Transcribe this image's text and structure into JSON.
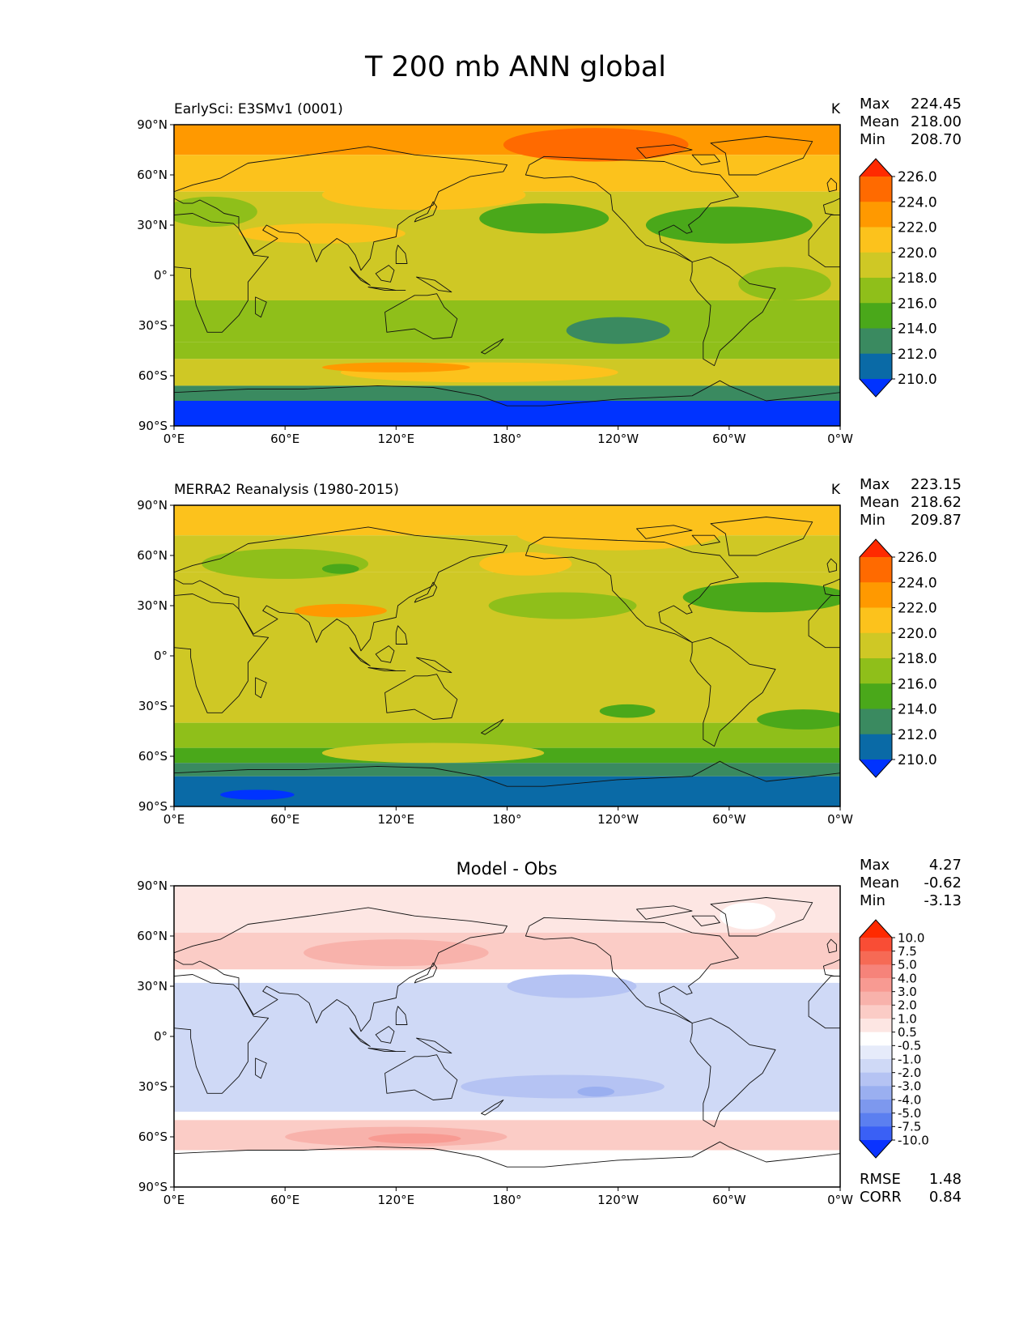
{
  "figure_title": "T 200 mb ANN global",
  "chart_data": [
    {
      "type": "heatmap",
      "title": "EarlySci: E3SMv1 (0001)",
      "units": "K",
      "stats": {
        "max_label": "Max",
        "max": "224.45",
        "mean_label": "Mean",
        "mean": "218.00",
        "min_label": "Min",
        "min": "208.70"
      },
      "x_ticks": [
        "0°E",
        "60°E",
        "120°E",
        "180°",
        "120°W",
        "60°W",
        "0°W"
      ],
      "y_ticks": [
        "90°N",
        "60°N",
        "30°N",
        "0°",
        "30°S",
        "60°S",
        "90°S"
      ],
      "xlim": [
        0,
        360
      ],
      "ylim": [
        -90,
        90
      ],
      "colorbar": {
        "levels": [
          "226.0",
          "224.0",
          "222.0",
          "220.0",
          "218.0",
          "216.0",
          "214.0",
          "212.0",
          "210.0"
        ],
        "colors": [
          "#ff2a00",
          "#ff6a00",
          "#ff9900",
          "#fcc21c",
          "#cfc825",
          "#8fbf1a",
          "#4aa81a",
          "#3a8a60",
          "#0a6aa6",
          "#0033ff"
        ]
      },
      "field_bands": [
        {
          "lat": [
            72,
            90
          ],
          "value": 222.5
        },
        {
          "lat": [
            50,
            72
          ],
          "value": 220.5
        },
        {
          "lat": [
            15,
            50
          ],
          "value": 218.5
        },
        {
          "lat": [
            -15,
            15
          ],
          "value": 218.5
        },
        {
          "lat": [
            -40,
            -15
          ],
          "value": 217
        },
        {
          "lat": [
            -50,
            -40
          ],
          "value": 216.5
        },
        {
          "lat": [
            -66,
            -50
          ],
          "value": 219
        },
        {
          "lat": [
            -75,
            -66
          ],
          "value": 213
        },
        {
          "lat": [
            -90,
            -75
          ],
          "value": 209
        }
      ],
      "field_blobs": [
        {
          "lon": 165,
          "lat": -58,
          "rlon": 75,
          "rlat": 6,
          "value": 221
        },
        {
          "lon": 120,
          "lat": -55,
          "rlon": 40,
          "rlat": 3,
          "value": 223
        },
        {
          "lon": 228,
          "lat": 78,
          "rlon": 50,
          "rlat": 10,
          "value": 224.5
        },
        {
          "lon": 200,
          "lat": 34,
          "rlon": 35,
          "rlat": 9,
          "value": 215
        },
        {
          "lon": 300,
          "lat": 30,
          "rlon": 45,
          "rlat": 11,
          "value": 215
        },
        {
          "lon": 240,
          "lat": -33,
          "rlon": 28,
          "rlat": 8,
          "value": 213
        },
        {
          "lon": 20,
          "lat": 38,
          "rlon": 25,
          "rlat": 9,
          "value": 216
        },
        {
          "lon": 80,
          "lat": 25,
          "rlon": 45,
          "rlat": 6,
          "value": 220.5
        },
        {
          "lon": 135,
          "lat": 48,
          "rlon": 55,
          "rlat": 9,
          "value": 221
        },
        {
          "lon": 330,
          "lat": -5,
          "rlon": 25,
          "rlat": 10,
          "value": 217
        }
      ]
    },
    {
      "type": "heatmap",
      "title": "MERRA2 Reanalysis (1980-2015)",
      "units": "K",
      "stats": {
        "max_label": "Max",
        "max": "223.15",
        "mean_label": "Mean",
        "mean": "218.62",
        "min_label": "Min",
        "min": "209.87"
      },
      "x_ticks": [
        "0°E",
        "60°E",
        "120°E",
        "180°",
        "120°W",
        "60°W",
        "0°W"
      ],
      "y_ticks": [
        "90°N",
        "60°N",
        "30°N",
        "0°",
        "30°S",
        "60°S",
        "90°S"
      ],
      "xlim": [
        0,
        360
      ],
      "ylim": [
        -90,
        90
      ],
      "colorbar": {
        "levels": [
          "226.0",
          "224.0",
          "222.0",
          "220.0",
          "218.0",
          "216.0",
          "214.0",
          "212.0",
          "210.0"
        ],
        "colors": [
          "#ff2a00",
          "#ff6a00",
          "#ff9900",
          "#fcc21c",
          "#cfc825",
          "#8fbf1a",
          "#4aa81a",
          "#3a8a60",
          "#0a6aa6",
          "#0033ff"
        ]
      },
      "field_bands": [
        {
          "lat": [
            72,
            90
          ],
          "value": 220.5
        },
        {
          "lat": [
            50,
            72
          ],
          "value": 218.5
        },
        {
          "lat": [
            15,
            50
          ],
          "value": 219
        },
        {
          "lat": [
            -15,
            15
          ],
          "value": 219
        },
        {
          "lat": [
            -40,
            -15
          ],
          "value": 219.5
        },
        {
          "lat": [
            -55,
            -40
          ],
          "value": 217
        },
        {
          "lat": [
            -64,
            -55
          ],
          "value": 215
        },
        {
          "lat": [
            -72,
            -64
          ],
          "value": 213
        },
        {
          "lat": [
            -90,
            -72
          ],
          "value": 211
        }
      ],
      "field_blobs": [
        {
          "lon": 240,
          "lat": 73,
          "rlon": 55,
          "rlat": 10,
          "value": 221
        },
        {
          "lon": 190,
          "lat": 55,
          "rlon": 25,
          "rlat": 7,
          "value": 221
        },
        {
          "lon": 210,
          "lat": 30,
          "rlon": 40,
          "rlat": 8,
          "value": 217
        },
        {
          "lon": 320,
          "lat": 35,
          "rlon": 45,
          "rlat": 9,
          "value": 215
        },
        {
          "lon": 90,
          "lat": 27,
          "rlon": 25,
          "rlat": 4,
          "value": 222.5
        },
        {
          "lon": 60,
          "lat": 55,
          "rlon": 45,
          "rlat": 9,
          "value": 217
        },
        {
          "lon": 90,
          "lat": 52,
          "rlon": 10,
          "rlat": 3,
          "value": 215
        },
        {
          "lon": 140,
          "lat": -58,
          "rlon": 60,
          "rlat": 6,
          "value": 218
        },
        {
          "lon": 245,
          "lat": -33,
          "rlon": 15,
          "rlat": 4,
          "value": 215
        },
        {
          "lon": 340,
          "lat": -38,
          "rlon": 25,
          "rlat": 6,
          "value": 215
        },
        {
          "lon": 45,
          "lat": -83,
          "rlon": 20,
          "rlat": 3,
          "value": 209.5
        }
      ]
    },
    {
      "type": "heatmap",
      "title": "Model - Obs",
      "units": "",
      "stats": {
        "max_label": "Max",
        "max": "4.27",
        "mean_label": "Mean",
        "mean": "-0.62",
        "min_label": "Min",
        "min": "-3.13"
      },
      "metrics": {
        "rmse_label": "RMSE",
        "rmse": "1.48",
        "corr_label": "CORR",
        "corr": "0.84"
      },
      "x_ticks": [
        "0°E",
        "60°E",
        "120°E",
        "180°",
        "120°W",
        "60°W",
        "0°W"
      ],
      "y_ticks": [
        "90°N",
        "60°N",
        "30°N",
        "0°",
        "30°S",
        "60°S",
        "90°S"
      ],
      "xlim": [
        0,
        360
      ],
      "ylim": [
        -90,
        90
      ],
      "colorbar": {
        "levels": [
          "10.0",
          "7.5",
          "5.0",
          "4.0",
          "3.0",
          "2.0",
          "1.0",
          "0.5",
          "-0.5",
          "-1.0",
          "-2.0",
          "-3.0",
          "-4.0",
          "-5.0",
          "-7.5",
          "-10.0"
        ],
        "colors": [
          "#ff2a00",
          "#f94d35",
          "#f66a55",
          "#f6837a",
          "#f89a92",
          "#f8b2ab",
          "#fbccc6",
          "#fde6e3",
          "#ffffff",
          "#e6ebfa",
          "#cfd9f6",
          "#b5c3f3",
          "#9aaff0",
          "#7d98ee",
          "#5b7ff0",
          "#3a60f5",
          "#0a33ff"
        ]
      },
      "field_bands": [
        {
          "lat": [
            62,
            90
          ],
          "value": 0.8
        },
        {
          "lat": [
            40,
            62
          ],
          "value": 1.4
        },
        {
          "lat": [
            32,
            40
          ],
          "value": 0.2
        },
        {
          "lat": [
            15,
            32
          ],
          "value": -1.2
        },
        {
          "lat": [
            -15,
            15
          ],
          "value": -1.1
        },
        {
          "lat": [
            -45,
            -15
          ],
          "value": -1.5
        },
        {
          "lat": [
            -50,
            -45
          ],
          "value": 0.1
        },
        {
          "lat": [
            -68,
            -50
          ],
          "value": 1.3
        },
        {
          "lat": [
            -90,
            -68
          ],
          "value": 0.1
        }
      ],
      "field_blobs": [
        {
          "lon": 120,
          "lat": 50,
          "rlon": 50,
          "rlat": 8,
          "value": 2.3
        },
        {
          "lon": 120,
          "lat": -60,
          "rlon": 60,
          "rlat": 6,
          "value": 2.3
        },
        {
          "lon": 130,
          "lat": -61,
          "rlon": 25,
          "rlat": 3,
          "value": 3.5
        },
        {
          "lon": 215,
          "lat": 30,
          "rlon": 35,
          "rlat": 7,
          "value": -2.4
        },
        {
          "lon": 210,
          "lat": -30,
          "rlon": 55,
          "rlat": 7,
          "value": -2.4
        },
        {
          "lon": 228,
          "lat": -33,
          "rlon": 10,
          "rlat": 3,
          "value": -3.2
        },
        {
          "lon": 310,
          "lat": 72,
          "rlon": 15,
          "rlat": 8,
          "value": 0.2
        },
        {
          "lon": 30,
          "lat": -80,
          "rlon": 30,
          "rlat": 8,
          "value": 0.2
        }
      ]
    }
  ]
}
